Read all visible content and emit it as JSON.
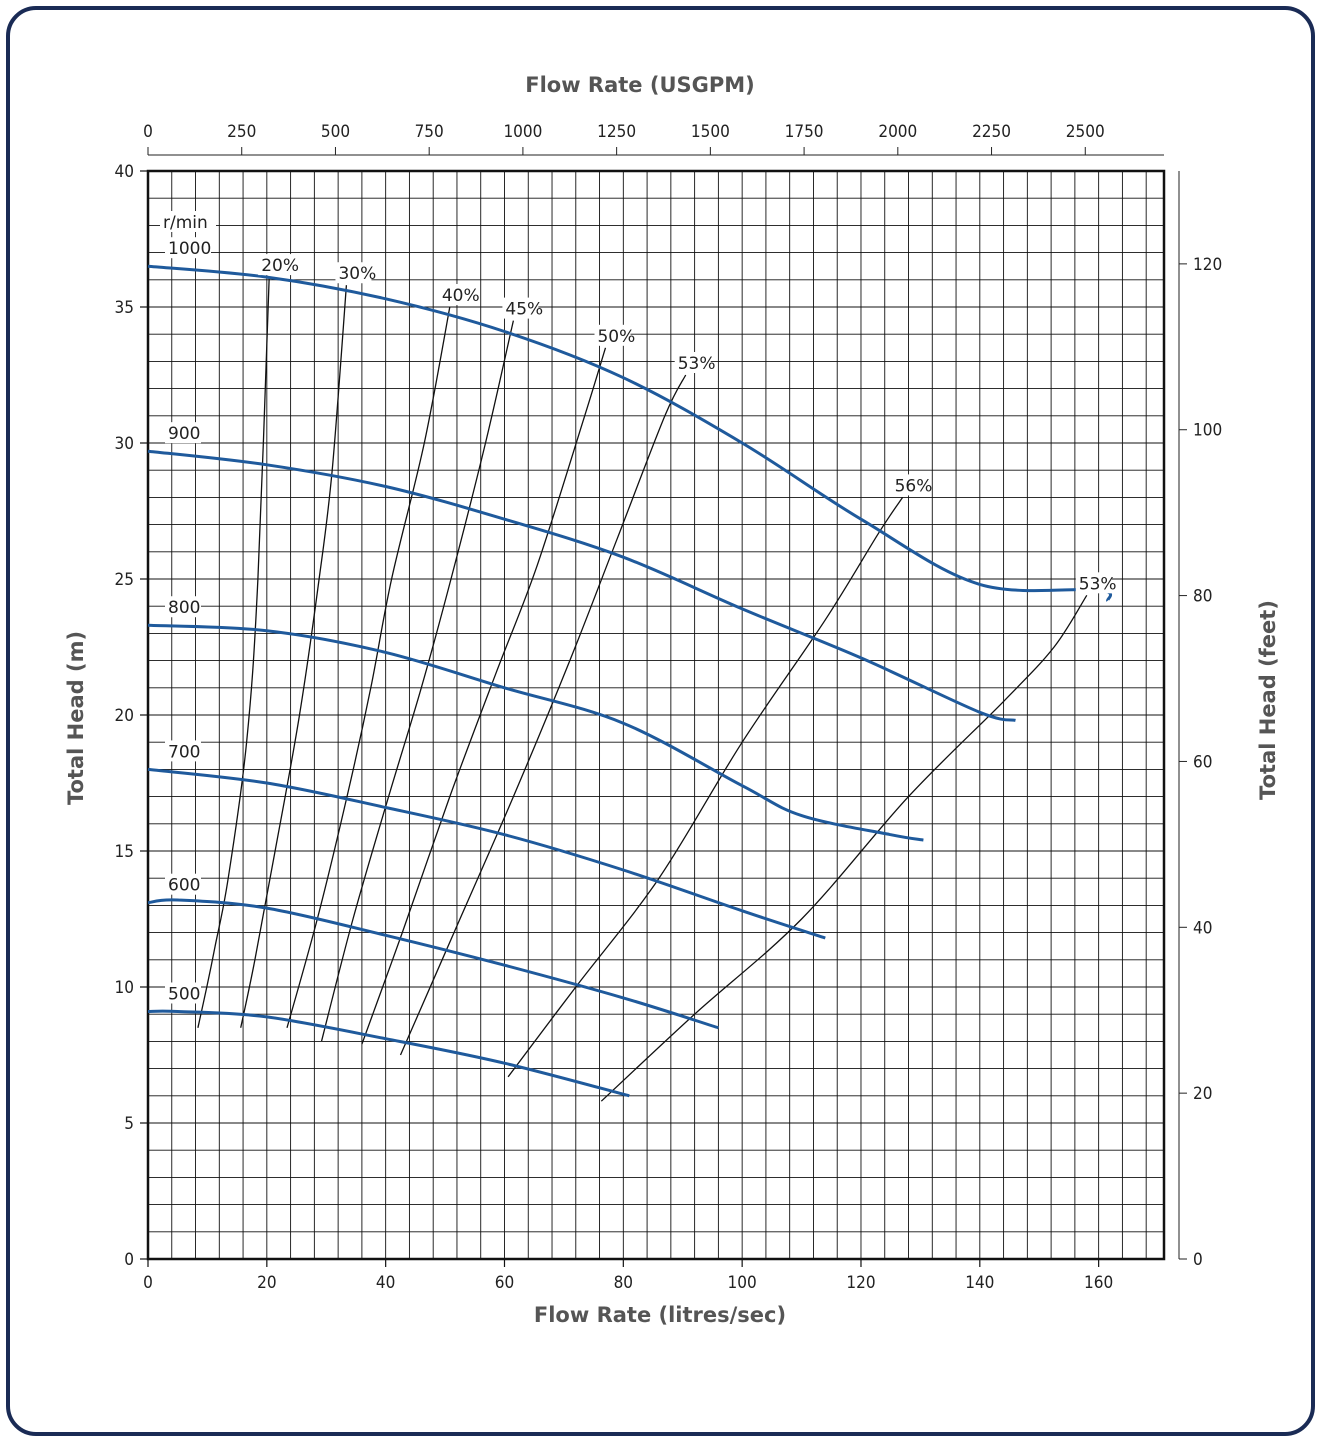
{
  "chart_data": {
    "type": "line",
    "title": "",
    "xlabel": "Flow Rate (litres/sec)",
    "ylabel": "Total Head (m)",
    "x2label": "Flow Rate (USGPM)",
    "y2label": "Total Head (feet)",
    "xlim": [
      0,
      171
    ],
    "ylim": [
      0,
      40
    ],
    "x2lim": [
      0,
      2710
    ],
    "y2lim": [
      0,
      131.2
    ],
    "grid": true,
    "xticks": [
      "0",
      "20",
      "40",
      "60",
      "80",
      "100",
      "120",
      "140",
      "160"
    ],
    "yticks": [
      "0",
      "5",
      "10",
      "15",
      "20",
      "25",
      "30",
      "35",
      "40"
    ],
    "x2ticks": [
      "0",
      "250",
      "500",
      "750",
      "1000",
      "1250",
      "1500",
      "1750",
      "2000",
      "2250",
      "2500"
    ],
    "y2ticks": [
      "0",
      "20",
      "40",
      "60",
      "80",
      "100",
      "120"
    ],
    "speed_unit_label": "r/min",
    "colors": {
      "speed_curve": "#1f5a9c",
      "efficiency_curve": "#111111",
      "grid": "#111111",
      "frame": "#1a2b55"
    },
    "series": [
      {
        "name": "1000",
        "x": [
          0,
          20,
          40,
          60,
          80,
          100,
          120,
          140,
          160,
          161.5
        ],
        "y": [
          36.5,
          36.1,
          35.3,
          34.1,
          32.4,
          30.0,
          27.2,
          24.8,
          24.6,
          24.2
        ]
      },
      {
        "name": "900",
        "x": [
          0,
          20,
          40,
          60,
          80,
          100,
          120,
          140,
          146
        ],
        "y": [
          29.7,
          29.2,
          28.4,
          27.2,
          25.8,
          23.9,
          22.1,
          20.1,
          19.8
        ]
      },
      {
        "name": "800",
        "x": [
          0,
          20,
          40,
          60,
          80,
          100,
          110,
          125,
          130.5
        ],
        "y": [
          23.3,
          23.1,
          22.3,
          21.0,
          19.7,
          17.4,
          16.3,
          15.6,
          15.4
        ]
      },
      {
        "name": "700",
        "x": [
          0,
          20,
          40,
          60,
          80,
          100,
          114
        ],
        "y": [
          18.0,
          17.5,
          16.6,
          15.6,
          14.3,
          12.8,
          11.8
        ]
      },
      {
        "name": "600",
        "x": [
          0,
          5,
          20,
          40,
          60,
          80,
          96
        ],
        "y": [
          13.1,
          13.2,
          12.9,
          11.9,
          10.8,
          9.6,
          8.5
        ]
      },
      {
        "name": "500",
        "x": [
          0,
          5,
          20,
          40,
          60,
          81
        ],
        "y": [
          9.1,
          9.1,
          8.9,
          8.1,
          7.2,
          6.0
        ]
      }
    ],
    "efficiency_lines": [
      {
        "name": "20%",
        "x": [
          8.4,
          9.9,
          11.3,
          13.5,
          16.6,
          18.5,
          20.4
        ],
        "y": [
          8.5,
          10.0,
          11.5,
          14.0,
          19.0,
          25.0,
          36.1
        ]
      },
      {
        "name": "30%",
        "x": [
          15.6,
          18.0,
          21.4,
          25.5,
          28.8,
          31.0,
          33.4
        ],
        "y": [
          8.5,
          11.0,
          15.0,
          20.0,
          25.0,
          29.0,
          35.8
        ]
      },
      {
        "name": "40%",
        "x": [
          23.4,
          28.5,
          33.5,
          37.5,
          41.0,
          46.5,
          50.8
        ],
        "y": [
          8.5,
          12.5,
          17.0,
          21.0,
          25.0,
          30.0,
          35.0
        ]
      },
      {
        "name": "45%",
        "x": [
          29.2,
          34.5,
          40.5,
          46.0,
          51.0,
          56.8,
          61.5
        ],
        "y": [
          8.0,
          12.5,
          17.0,
          21.0,
          25.0,
          30.0,
          34.5
        ]
      },
      {
        "name": "50%",
        "x": [
          36.0,
          42.8,
          50.8,
          58.5,
          65.5,
          73.5,
          77.0
        ],
        "y": [
          7.9,
          12.0,
          17.0,
          21.5,
          25.5,
          31.0,
          33.5
        ]
      },
      {
        "name": "53%",
        "x": [
          42.5,
          51.5,
          61.5,
          71.0,
          79.0,
          87.0,
          90.5
        ],
        "y": [
          7.5,
          12.0,
          17.0,
          22.0,
          26.5,
          31.0,
          32.5
        ]
      },
      {
        "name": "56%",
        "x": [
          60.6,
          72.0,
          86.0,
          100.0,
          114.0,
          123.0,
          127.0
        ],
        "y": [
          6.7,
          10.0,
          14.0,
          19.0,
          23.5,
          26.7,
          28.0
        ]
      },
      {
        "name": "53%",
        "x": [
          76.3,
          92.0,
          110.0,
          128.0,
          144.0,
          152.5,
          158.0
        ],
        "y": [
          5.8,
          9.0,
          12.5,
          17.0,
          20.5,
          22.5,
          24.4
        ]
      }
    ]
  }
}
